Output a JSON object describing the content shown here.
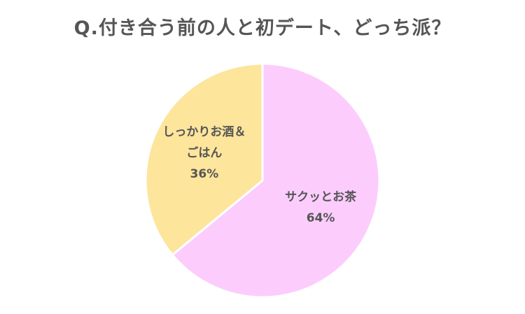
{
  "chart_data": {
    "type": "pie",
    "title": "Q.付き合う前の人と初デート、どっち派？",
    "slices": [
      {
        "label_lines": [
          "サクッとお茶"
        ],
        "value": 64,
        "value_label": "64%",
        "color": "#fccdfc"
      },
      {
        "label_lines": [
          "しっかりお酒＆",
          "ごはん"
        ],
        "value": 36,
        "value_label": "36%",
        "color": "#fde59c"
      }
    ],
    "start_angle_deg": 0,
    "direction": "clockwise",
    "slice_stroke_color": "#ffffff"
  }
}
